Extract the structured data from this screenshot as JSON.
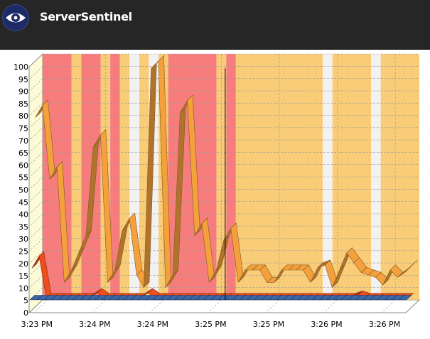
{
  "app": {
    "title": "ServerSentinel",
    "logo_icon": "eye-icon"
  },
  "colors": {
    "header_bg": "#262626",
    "alert_red": "#f77d7d",
    "warn_amber": "#f9cd77",
    "normal_white": "#f2f2f2",
    "series_main": "#f4a03c",
    "series_low": "#f04d1c",
    "series_base": "#3b68a8"
  },
  "chart_data": {
    "type": "area",
    "title": "",
    "xlabel": "",
    "ylabel": "",
    "three_d": true,
    "ylim": [
      0,
      100
    ],
    "yticks": [
      0,
      5,
      10,
      15,
      20,
      25,
      30,
      35,
      40,
      45,
      50,
      55,
      60,
      65,
      70,
      75,
      80,
      85,
      90,
      95,
      100
    ],
    "grid": true,
    "x_range": [
      0,
      39
    ],
    "x_tick_labels": [
      "3:23 PM",
      "3:24 PM",
      "3:24 PM",
      "3:25 PM",
      "3:25 PM",
      "3:26 PM",
      "3:26 PM"
    ],
    "x_tick_positions": [
      0.5,
      6.5,
      12.5,
      18.5,
      24.5,
      30.5,
      36.5
    ],
    "cursor_x": 18.9,
    "status_bands": [
      {
        "start": 0,
        "end": 3,
        "level": "alert"
      },
      {
        "start": 3,
        "end": 4,
        "level": "warn"
      },
      {
        "start": 4,
        "end": 6,
        "level": "alert"
      },
      {
        "start": 6,
        "end": 7,
        "level": "warn"
      },
      {
        "start": 7,
        "end": 8,
        "level": "alert"
      },
      {
        "start": 8,
        "end": 9,
        "level": "warn"
      },
      {
        "start": 9,
        "end": 10,
        "level": "normal"
      },
      {
        "start": 10,
        "end": 11,
        "level": "warn"
      },
      {
        "start": 11,
        "end": 12,
        "level": "normal"
      },
      {
        "start": 12,
        "end": 13,
        "level": "warn"
      },
      {
        "start": 13,
        "end": 18,
        "level": "alert"
      },
      {
        "start": 18,
        "end": 19,
        "level": "warn"
      },
      {
        "start": 19,
        "end": 20,
        "level": "alert"
      },
      {
        "start": 20,
        "end": 29,
        "level": "warn"
      },
      {
        "start": 29,
        "end": 30,
        "level": "normal"
      },
      {
        "start": 30,
        "end": 34,
        "level": "warn"
      },
      {
        "start": 34,
        "end": 35,
        "level": "normal"
      },
      {
        "start": 35,
        "end": 39,
        "level": "warn"
      }
    ],
    "series": [
      {
        "values": [
          77,
          82,
          52,
          57,
          10,
          15,
          22,
          29,
          65,
          70,
          10,
          15,
          31,
          36,
          13,
          8,
          97,
          100,
          8,
          13,
          79,
          84,
          29,
          34,
          10,
          15,
          27,
          32,
          10,
          15,
          15,
          15,
          10,
          10,
          15,
          15,
          15,
          15,
          10,
          16,
          17,
          8,
          15,
          22,
          18,
          14,
          13,
          12,
          9,
          15,
          12,
          14,
          17
        ]
      },
      {
        "values": [
          17,
          22,
          5,
          5,
          5,
          5,
          5,
          5,
          5,
          7,
          5,
          5,
          5,
          5,
          5,
          5,
          7,
          5,
          5,
          5,
          5,
          5,
          5,
          5,
          5,
          5,
          5,
          5,
          5,
          5,
          5,
          5,
          5,
          5,
          5,
          5,
          5,
          5,
          5,
          5,
          5,
          5,
          5,
          5,
          5,
          6,
          5,
          5,
          5,
          5,
          5,
          5,
          5
        ]
      },
      {
        "values": [
          5,
          5,
          5,
          5,
          5,
          5,
          5,
          5,
          5,
          5,
          5,
          5,
          5,
          5,
          5,
          5,
          5,
          5,
          5,
          5,
          5,
          5,
          5,
          5,
          5,
          5,
          5,
          5,
          5,
          5,
          5,
          5,
          5,
          5,
          5,
          5,
          5,
          5,
          5,
          5,
          5,
          5,
          5,
          5,
          5,
          5,
          5,
          5,
          5,
          5,
          5,
          5,
          5
        ]
      }
    ]
  }
}
